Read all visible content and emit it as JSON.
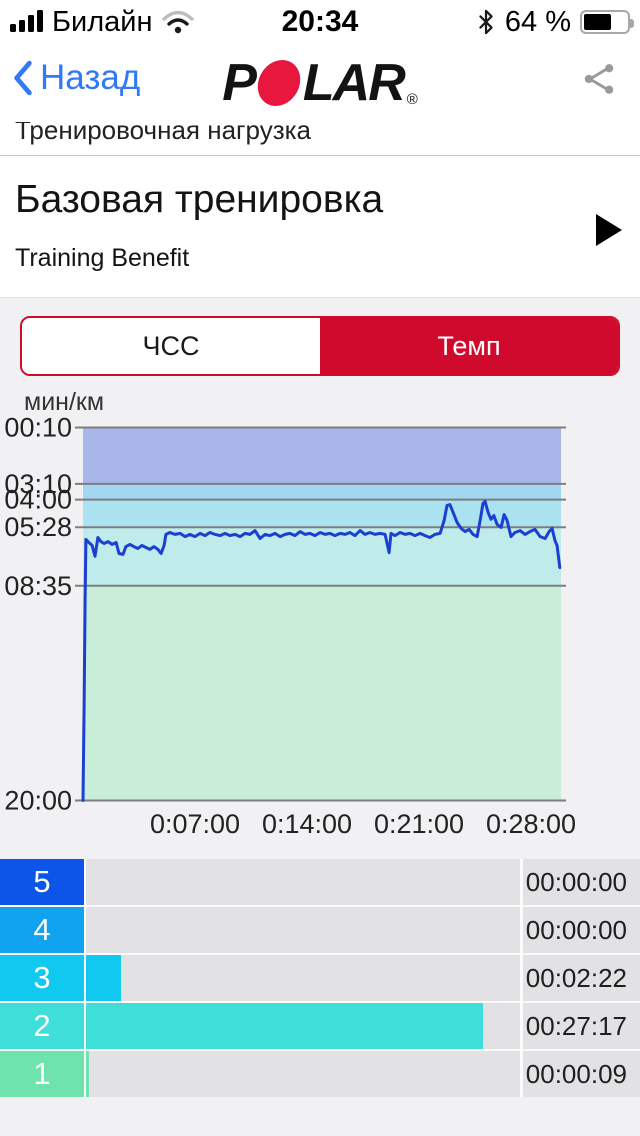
{
  "status_bar": {
    "carrier": "Билайн",
    "time": "20:34",
    "battery_percent": "64 %",
    "battery_level": 64,
    "icons": [
      "cell-signal-icon",
      "wifi-icon",
      "bluetooth-icon",
      "battery-icon"
    ]
  },
  "nav_bar": {
    "back_label": "Назад",
    "logo_name": "POLAR",
    "logo_part1": "P",
    "logo_part2": "LAR",
    "registered_mark": "®"
  },
  "scrolled_header": {
    "label": "Тренировочная нагрузка"
  },
  "workout": {
    "title": "Базовая тренировка",
    "subtitle": "Training Benefit"
  },
  "tabs": {
    "accent_color": "#cf0a2c",
    "items": [
      {
        "label": "ЧСС",
        "active": false
      },
      {
        "label": "Темп",
        "active": true
      }
    ]
  },
  "chart_data": {
    "type": "line",
    "unit_label": "мин/км",
    "x_axis": "elapsed time h:mm:ss",
    "y_axis": "pace min/km, linear, fast (00:10) at top to slow (20:00) at bottom",
    "x_range_sec": [
      0,
      1792
    ],
    "x_ticks": {
      "values_sec": [
        420,
        840,
        1260,
        1680
      ],
      "labels": [
        "0:07:00",
        "0:14:00",
        "0:21:00",
        "0:28:00"
      ]
    },
    "y_ticks": {
      "pace_sec_per_km": [
        10,
        190,
        240,
        328,
        515,
        1200
      ],
      "labels": [
        "00:10",
        "03:10",
        "04:00",
        "05:28",
        "08:35",
        "20:00"
      ]
    },
    "zone_bands": [
      "#a8b6ea",
      "#a3d6f0",
      "#abe2f2",
      "#bfecea",
      "#c8eeda"
    ],
    "grid_color": "#7d7d7d",
    "line_color": "#1b3fd0",
    "series": [
      {
        "name": "pace",
        "points_t_sec_pace_sec": [
          [
            0,
            1200
          ],
          [
            4,
            900
          ],
          [
            8,
            560
          ],
          [
            11,
            367
          ],
          [
            22,
            377
          ],
          [
            34,
            386
          ],
          [
            45,
            421
          ],
          [
            56,
            361
          ],
          [
            67,
            374
          ],
          [
            79,
            380
          ],
          [
            94,
            374
          ],
          [
            109,
            383
          ],
          [
            124,
            377
          ],
          [
            135,
            412
          ],
          [
            150,
            415
          ],
          [
            161,
            390
          ],
          [
            176,
            383
          ],
          [
            191,
            390
          ],
          [
            206,
            396
          ],
          [
            221,
            386
          ],
          [
            236,
            393
          ],
          [
            251,
            399
          ],
          [
            266,
            390
          ],
          [
            281,
            399
          ],
          [
            293,
            412
          ],
          [
            304,
            386
          ],
          [
            311,
            351
          ],
          [
            326,
            345
          ],
          [
            345,
            351
          ],
          [
            364,
            348
          ],
          [
            383,
            358
          ],
          [
            401,
            351
          ],
          [
            420,
            358
          ],
          [
            439,
            348
          ],
          [
            458,
            355
          ],
          [
            476,
            345
          ],
          [
            495,
            351
          ],
          [
            514,
            355
          ],
          [
            533,
            348
          ],
          [
            551,
            355
          ],
          [
            570,
            351
          ],
          [
            589,
            358
          ],
          [
            608,
            348
          ],
          [
            626,
            351
          ],
          [
            645,
            339
          ],
          [
            664,
            364
          ],
          [
            683,
            351
          ],
          [
            701,
            355
          ],
          [
            720,
            348
          ],
          [
            739,
            358
          ],
          [
            758,
            351
          ],
          [
            776,
            348
          ],
          [
            795,
            355
          ],
          [
            814,
            342
          ],
          [
            833,
            351
          ],
          [
            851,
            348
          ],
          [
            870,
            355
          ],
          [
            889,
            345
          ],
          [
            908,
            351
          ],
          [
            926,
            348
          ],
          [
            945,
            355
          ],
          [
            964,
            348
          ],
          [
            983,
            351
          ],
          [
            1001,
            345
          ],
          [
            1020,
            355
          ],
          [
            1039,
            339
          ],
          [
            1058,
            351
          ],
          [
            1076,
            345
          ],
          [
            1095,
            351
          ],
          [
            1114,
            348
          ],
          [
            1133,
            351
          ],
          [
            1148,
            409
          ],
          [
            1155,
            348
          ],
          [
            1170,
            355
          ],
          [
            1189,
            345
          ],
          [
            1208,
            351
          ],
          [
            1226,
            348
          ],
          [
            1245,
            355
          ],
          [
            1264,
            348
          ],
          [
            1283,
            355
          ],
          [
            1301,
            361
          ],
          [
            1320,
            351
          ],
          [
            1339,
            348
          ],
          [
            1354,
            307
          ],
          [
            1365,
            259
          ],
          [
            1376,
            256
          ],
          [
            1388,
            281
          ],
          [
            1403,
            313
          ],
          [
            1418,
            332
          ],
          [
            1433,
            342
          ],
          [
            1448,
            335
          ],
          [
            1463,
            351
          ],
          [
            1478,
            358
          ],
          [
            1489,
            307
          ],
          [
            1500,
            252
          ],
          [
            1508,
            246
          ],
          [
            1519,
            281
          ],
          [
            1530,
            303
          ],
          [
            1541,
            291
          ],
          [
            1553,
            319
          ],
          [
            1568,
            329
          ],
          [
            1579,
            288
          ],
          [
            1590,
            306
          ],
          [
            1605,
            358
          ],
          [
            1620,
            345
          ],
          [
            1639,
            339
          ],
          [
            1658,
            351
          ],
          [
            1676,
            342
          ],
          [
            1695,
            335
          ],
          [
            1714,
            358
          ],
          [
            1733,
            364
          ],
          [
            1748,
            342
          ],
          [
            1759,
            332
          ],
          [
            1770,
            371
          ],
          [
            1778,
            387
          ],
          [
            1788,
            457
          ]
        ]
      }
    ]
  },
  "zones": {
    "rows": [
      {
        "label": "5",
        "time": "00:00:00",
        "color": "#0d55e8",
        "bar_pct": 0
      },
      {
        "label": "4",
        "time": "00:00:00",
        "color": "#0fa3f0",
        "bar_pct": 0
      },
      {
        "label": "3",
        "time": "00:02:22",
        "color": "#10c8f0",
        "bar_pct": 8.1
      },
      {
        "label": "2",
        "time": "00:27:17",
        "color": "#3ddfd8",
        "bar_pct": 91.5
      },
      {
        "label": "1",
        "time": "00:00:09",
        "color": "#6fe3ac",
        "bar_pct": 0.7
      }
    ]
  }
}
